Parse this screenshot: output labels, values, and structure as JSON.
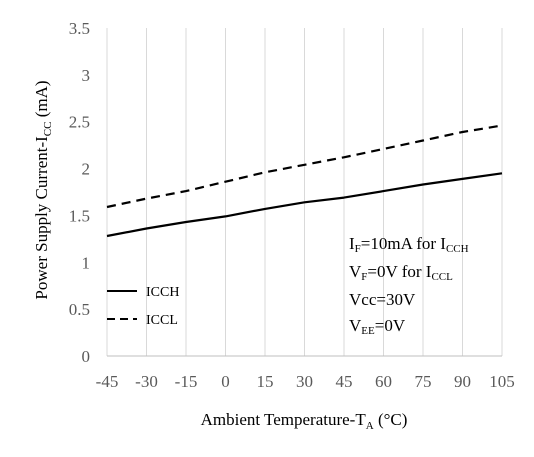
{
  "chart_data": {
    "type": "line",
    "title": "",
    "xlabel": {
      "main": "Ambient Temperature-T",
      "sub": "A",
      "suffix": " (°C)"
    },
    "ylabel": {
      "main": "Power Supply Current-I",
      "sub": "CC",
      "suffix": " (mA)"
    },
    "x": [
      -45,
      -30,
      -15,
      0,
      15,
      30,
      45,
      60,
      75,
      90,
      105
    ],
    "x_ticks": [
      "-45",
      "-30",
      "-15",
      "0",
      "15",
      "30",
      "45",
      "60",
      "75",
      "90",
      "105"
    ],
    "y_ticks": [
      "0",
      "0.5",
      "1",
      "1.5",
      "2",
      "2.5",
      "3",
      "3.5"
    ],
    "xlim": [
      -45,
      105
    ],
    "ylim": [
      0,
      3.5
    ],
    "grid": "vertical",
    "series": [
      {
        "name": "ICCH",
        "style": "solid",
        "color": "#000000",
        "values": [
          1.28,
          1.36,
          1.43,
          1.49,
          1.57,
          1.64,
          1.69,
          1.76,
          1.83,
          1.89,
          1.95
        ]
      },
      {
        "name": "ICCL",
        "style": "dashed",
        "color": "#000000",
        "values": [
          1.59,
          1.68,
          1.76,
          1.86,
          1.96,
          2.04,
          2.12,
          2.21,
          2.3,
          2.39,
          2.46
        ]
      }
    ],
    "legend_position": "bottom-left",
    "annotations": [
      {
        "main": "I",
        "sub": "F",
        "rest": "=10mA for I",
        "sub2": "CCH"
      },
      {
        "main": "V",
        "sub": "F",
        "rest": "=0V for I",
        "sub2": "CCL"
      },
      {
        "main": "Vcc=30V",
        "sub": "",
        "rest": "",
        "sub2": ""
      },
      {
        "main": "V",
        "sub": "EE",
        "rest": "=0V",
        "sub2": ""
      }
    ],
    "colors": {
      "grid": "#d9d9d9",
      "axis": "#bfbfbf",
      "tick_text": "#595959",
      "line": "#000000"
    }
  }
}
